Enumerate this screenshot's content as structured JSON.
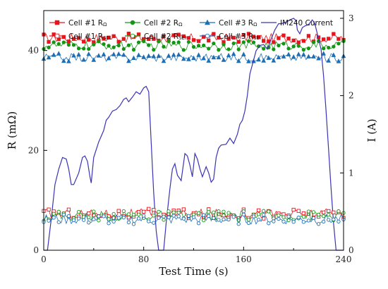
{
  "chart_data": {
    "type": "line",
    "xlabel": "Test Time (s)",
    "ylabel_left": "R (mΩ)",
    "ylabel_right": "I (A)",
    "xlim": [
      0,
      240
    ],
    "ylim_left": [
      0,
      48
    ],
    "ylim_right": [
      0,
      3.1
    ],
    "xticks": [
      "0",
      "80",
      "160",
      "240"
    ],
    "yticks_left": [
      "0",
      "20",
      "40"
    ],
    "yticks_right": [
      "0",
      "1",
      "2",
      "3"
    ],
    "grid": false,
    "legend_position": "top",
    "series": [
      {
        "name": "Cell #1 RΩ",
        "main": "Cell #1 R",
        "sub": "Ω",
        "axis": "left",
        "color": "#e8141c",
        "marker": "square",
        "filled": true,
        "mean": 42.5,
        "jitter": 0.9
      },
      {
        "name": "Cell #2 RΩ",
        "main": "Cell #2 R",
        "sub": "Ω",
        "axis": "left",
        "color": "#149614",
        "marker": "circle",
        "filled": true,
        "mean": 41.0,
        "jitter": 0.9
      },
      {
        "name": "Cell #3 RΩ",
        "main": "Cell #3 R",
        "sub": "Ω",
        "axis": "left",
        "color": "#1e6eb4",
        "marker": "triangle",
        "filled": true,
        "mean": 38.6,
        "jitter": 0.8
      },
      {
        "name": "IM240 Current",
        "main": "IM240 Current",
        "sub": "",
        "axis": "right",
        "color": "#3a34b4",
        "marker": "none",
        "filled": false,
        "points": [
          [
            0,
            0
          ],
          [
            3,
            0
          ],
          [
            6,
            0.4
          ],
          [
            9,
            0.85
          ],
          [
            12,
            1.05
          ],
          [
            15,
            1.2
          ],
          [
            18,
            1.18
          ],
          [
            20,
            1.05
          ],
          [
            22,
            0.85
          ],
          [
            24,
            0.85
          ],
          [
            28,
            1.0
          ],
          [
            31,
            1.2
          ],
          [
            33,
            1.22
          ],
          [
            35,
            1.15
          ],
          [
            37,
            0.95
          ],
          [
            38,
            0.87
          ],
          [
            40,
            1.2
          ],
          [
            44,
            1.4
          ],
          [
            48,
            1.55
          ],
          [
            50,
            1.68
          ],
          [
            52,
            1.72
          ],
          [
            55,
            1.8
          ],
          [
            58,
            1.82
          ],
          [
            61,
            1.87
          ],
          [
            64,
            1.95
          ],
          [
            66,
            1.97
          ],
          [
            68,
            1.92
          ],
          [
            71,
            1.98
          ],
          [
            74,
            2.05
          ],
          [
            77,
            2.02
          ],
          [
            80,
            2.1
          ],
          [
            82,
            2.12
          ],
          [
            84,
            2.05
          ],
          [
            86,
            1.4
          ],
          [
            88,
            0.75
          ],
          [
            90,
            0.25
          ],
          [
            92,
            0
          ],
          [
            96,
            0
          ],
          [
            98,
            0.35
          ],
          [
            101,
            0.8
          ],
          [
            103,
            1.05
          ],
          [
            105,
            1.12
          ],
          [
            107,
            0.97
          ],
          [
            110,
            0.9
          ],
          [
            113,
            1.25
          ],
          [
            115,
            1.22
          ],
          [
            117,
            1.1
          ],
          [
            119,
            0.95
          ],
          [
            121,
            1.25
          ],
          [
            123,
            1.18
          ],
          [
            125,
            1.05
          ],
          [
            127,
            0.95
          ],
          [
            130,
            1.08
          ],
          [
            132,
            1.0
          ],
          [
            134,
            0.88
          ],
          [
            136,
            0.92
          ],
          [
            138,
            1.2
          ],
          [
            140,
            1.32
          ],
          [
            142,
            1.36
          ],
          [
            146,
            1.37
          ],
          [
            149,
            1.45
          ],
          [
            152,
            1.38
          ],
          [
            155,
            1.5
          ],
          [
            157,
            1.63
          ],
          [
            159,
            1.68
          ],
          [
            161,
            1.8
          ],
          [
            163,
            2.0
          ],
          [
            165,
            2.28
          ],
          [
            168,
            2.46
          ],
          [
            170,
            2.58
          ],
          [
            173,
            2.65
          ],
          [
            176,
            2.66
          ],
          [
            179,
            2.6
          ],
          [
            182,
            2.73
          ],
          [
            185,
            2.85
          ],
          [
            188,
            2.93
          ],
          [
            190,
            2.93
          ],
          [
            194,
            2.95
          ],
          [
            197,
            2.98
          ],
          [
            200,
            3.0
          ],
          [
            202,
            2.97
          ],
          [
            203,
            2.85
          ],
          [
            205,
            2.8
          ],
          [
            207,
            2.88
          ],
          [
            209,
            2.9
          ],
          [
            212,
            2.92
          ],
          [
            215,
            2.98
          ],
          [
            217,
            2.93
          ],
          [
            219,
            2.8
          ],
          [
            222,
            2.6
          ],
          [
            224,
            2.25
          ],
          [
            226,
            1.8
          ],
          [
            228,
            1.3
          ],
          [
            230,
            0.8
          ],
          [
            232,
            0.35
          ],
          [
            234,
            0
          ],
          [
            240,
            0
          ]
        ]
      },
      {
        "name": "Cell #1 RSEI",
        "main": "Cell #1 R",
        "sub": "SEI",
        "axis": "left",
        "color": "#e8141c",
        "marker": "square",
        "filled": false,
        "mean": 7.3,
        "jitter": 1.0
      },
      {
        "name": "Cell #2 RSEI",
        "main": "Cell #2 R",
        "sub": "SEI",
        "axis": "left",
        "color": "#149614",
        "marker": "circle",
        "filled": false,
        "mean": 6.9,
        "jitter": 1.0
      },
      {
        "name": "Cell #3 RSEI",
        "main": "Cell #3 R",
        "sub": "SEI",
        "axis": "left",
        "color": "#1e6eb4",
        "marker": "circle",
        "filled": false,
        "mean": 6.2,
        "jitter": 1.0
      }
    ]
  }
}
